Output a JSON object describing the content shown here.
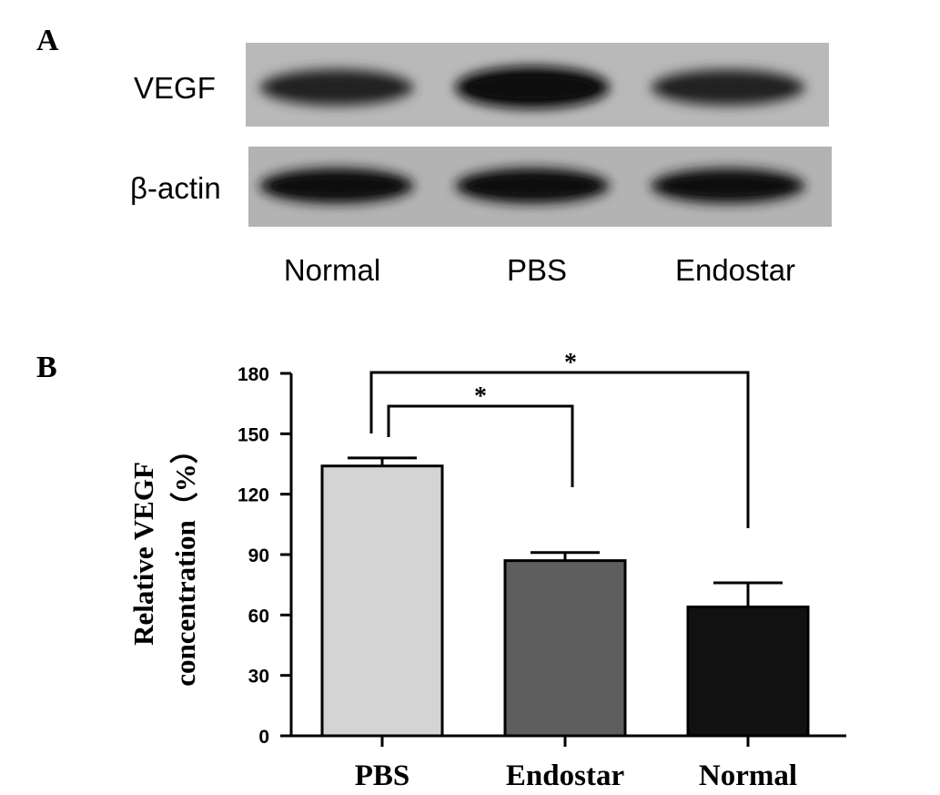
{
  "panels": {
    "a": "A",
    "b": "B"
  },
  "blot": {
    "rows": [
      "VEGF",
      "β-actin"
    ],
    "lanes": [
      "Normal",
      "PBS",
      "Endostar"
    ],
    "band_intensity": {
      "VEGF": [
        0.62,
        0.95,
        0.6
      ],
      "β-actin": [
        0.9,
        0.88,
        0.85
      ]
    }
  },
  "chart_data": {
    "type": "bar",
    "categories": [
      "PBS",
      "Endostar",
      "Normal"
    ],
    "values": [
      134,
      87,
      64
    ],
    "errors": [
      4,
      4,
      12
    ],
    "bar_colors": [
      "#d4d4d4",
      "#5e5e5e",
      "#111111"
    ],
    "ylabel_line1": "Relative VEGF",
    "ylabel_line2": "concentration（%）",
    "ylim": [
      0,
      180
    ],
    "yticks": [
      0,
      30,
      60,
      90,
      120,
      150,
      180
    ],
    "significance": [
      {
        "from": "PBS",
        "to": "Endostar",
        "label": "*"
      },
      {
        "from": "PBS",
        "to": "Normal",
        "label": "*"
      }
    ]
  }
}
